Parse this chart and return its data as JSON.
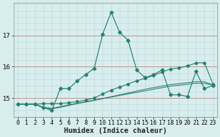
{
  "xlabel": "Humidex (Indice chaleur)",
  "x_values": [
    0,
    1,
    2,
    3,
    4,
    5,
    6,
    7,
    8,
    9,
    10,
    11,
    12,
    13,
    14,
    15,
    16,
    17,
    18,
    19,
    20,
    21,
    22,
    23
  ],
  "line_main": [
    14.8,
    14.8,
    14.8,
    14.7,
    14.6,
    15.3,
    15.3,
    15.55,
    15.75,
    15.95,
    17.05,
    17.75,
    17.1,
    16.85,
    15.9,
    15.65,
    15.75,
    15.9,
    15.1,
    15.1,
    15.05,
    15.85,
    15.3,
    15.4
  ],
  "line_upper": [
    14.8,
    14.8,
    14.8,
    14.82,
    14.82,
    14.82,
    14.85,
    14.88,
    14.93,
    15.0,
    15.13,
    15.25,
    15.35,
    15.45,
    15.55,
    15.63,
    15.72,
    15.83,
    15.93,
    15.96,
    16.03,
    16.12,
    16.13,
    15.45
  ],
  "line_mid1": [
    14.8,
    14.8,
    14.8,
    14.68,
    14.65,
    14.7,
    14.76,
    14.82,
    14.87,
    14.92,
    14.98,
    15.04,
    15.1,
    15.16,
    15.22,
    15.28,
    15.33,
    15.38,
    15.43,
    15.46,
    15.49,
    15.52,
    15.52,
    15.42
  ],
  "line_mid2": [
    14.8,
    14.8,
    14.8,
    14.7,
    14.67,
    14.72,
    14.78,
    14.83,
    14.88,
    14.93,
    14.98,
    15.03,
    15.08,
    15.13,
    15.18,
    15.23,
    15.28,
    15.33,
    15.38,
    15.41,
    15.44,
    15.47,
    15.47,
    15.41
  ],
  "line_color": "#2a7f6f",
  "bg_color": "#d8eeee",
  "grid_color": "#bdd8d8",
  "red_line_color": "#c09090",
  "yticks": [
    15,
    16,
    17
  ],
  "ylim": [
    14.38,
    18.05
  ],
  "xlim": [
    -0.5,
    23.5
  ],
  "tick_fontsize": 6,
  "label_fontsize": 7.5
}
